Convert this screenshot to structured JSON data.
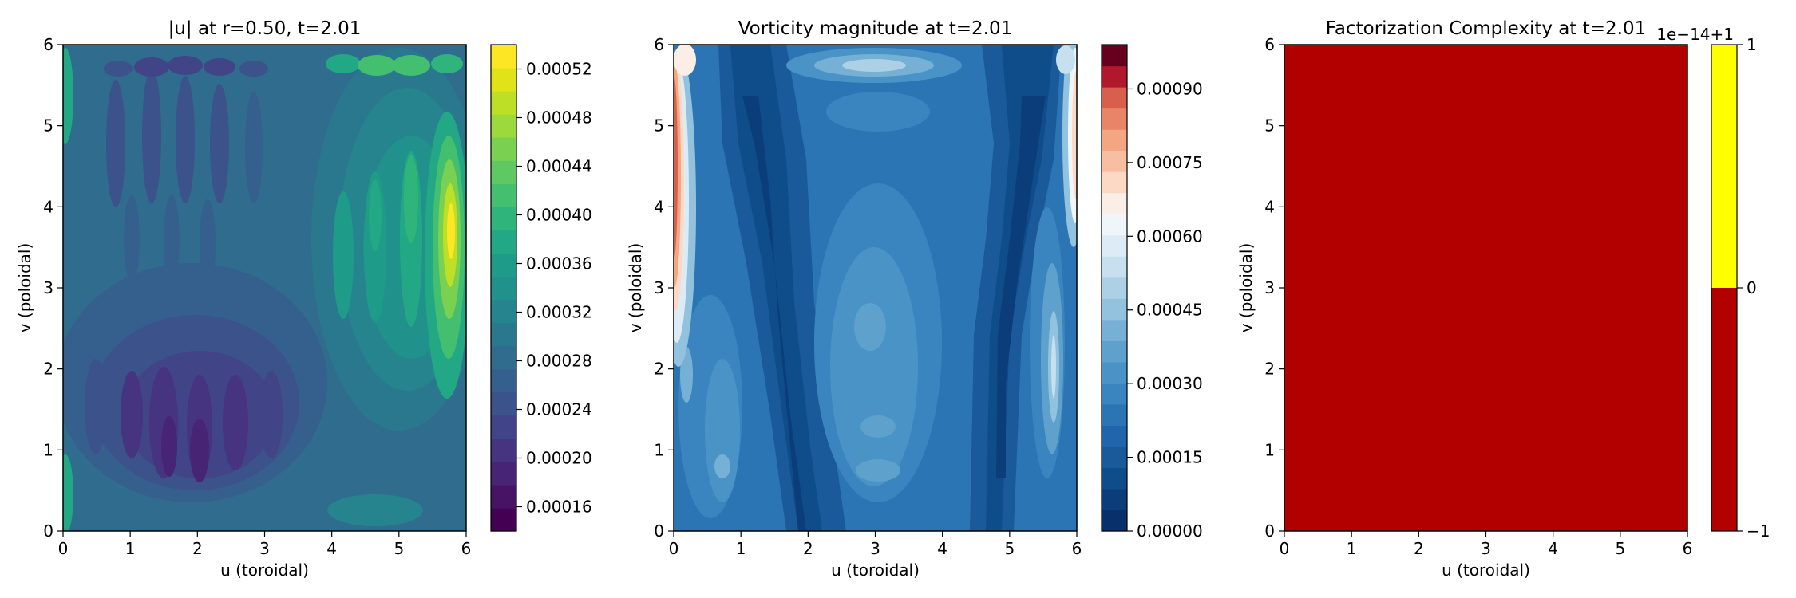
{
  "chart_data": [
    {
      "type": "heatmap",
      "title": "|u| at r=0.50, t=2.01",
      "xlabel": "u (toroidal)",
      "ylabel": "v (poloidal)",
      "xlim": [
        0,
        6
      ],
      "ylim": [
        0,
        6
      ],
      "x_ticks": [
        "0",
        "1",
        "2",
        "3",
        "4",
        "5",
        "6"
      ],
      "y_ticks": [
        "0",
        "1",
        "2",
        "3",
        "4",
        "5",
        "6"
      ],
      "colormap": "viridis",
      "colorbar_range": [
        0.00014,
        0.00054
      ],
      "colorbar_ticks": [
        "0.00016",
        "0.00020",
        "0.00024",
        "0.00028",
        "0.00032",
        "0.00036",
        "0.00040",
        "0.00044",
        "0.00048",
        "0.00052"
      ],
      "colorbar_tick_values": [
        0.00016,
        0.0002,
        0.00024,
        0.00028,
        0.00032,
        0.00036,
        0.0004,
        0.00044,
        0.00048,
        0.00052
      ],
      "levels": 20,
      "colors": [
        "#440154",
        "#471365",
        "#482475",
        "#463480",
        "#414487",
        "#3b528b",
        "#355f8d",
        "#2f6c8e",
        "#2a788e",
        "#25848e",
        "#21918c",
        "#1e9c89",
        "#22a884",
        "#2fb47c",
        "#44bf70",
        "#5ec962",
        "#7ad151",
        "#9bd93c",
        "#bddf26",
        "#dfe318",
        "#fde725"
      ]
    },
    {
      "type": "heatmap",
      "title": "Vorticity magnitude at t=2.01",
      "xlabel": "u (toroidal)",
      "ylabel": "v (poloidal)",
      "xlim": [
        0,
        6
      ],
      "ylim": [
        0,
        6
      ],
      "x_ticks": [
        "0",
        "1",
        "2",
        "3",
        "4",
        "5",
        "6"
      ],
      "y_ticks": [
        "0",
        "1",
        "2",
        "3",
        "4",
        "5",
        "6"
      ],
      "colormap": "RdBu_r",
      "colorbar_range": [
        0.0,
        0.00099
      ],
      "colorbar_ticks": [
        "0.00000",
        "0.00015",
        "0.00030",
        "0.00045",
        "0.00060",
        "0.00075",
        "0.00090"
      ],
      "colorbar_tick_values": [
        0.0,
        0.00015,
        0.0003,
        0.00045,
        0.0006,
        0.00075,
        0.0009
      ],
      "levels": 22,
      "colors": [
        "#08306b",
        "#0b3d7a",
        "#0f4c8a",
        "#1a5a9a",
        "#2166ac",
        "#2c75b5",
        "#3a85bf",
        "#4a93c6",
        "#5ea1cd",
        "#76b0d5",
        "#92c2de",
        "#acd1e6",
        "#c6e0ef",
        "#dcebf5",
        "#f0f5fa",
        "#fbeee6",
        "#fcd9c5",
        "#f8bea2",
        "#f4a582",
        "#e98466",
        "#d6604d",
        "#b2182b",
        "#67001f"
      ]
    },
    {
      "type": "heatmap",
      "title": "Factorization Complexity at t=2.01",
      "xlabel": "u (toroidal)",
      "ylabel": "v (poloidal)",
      "xlim": [
        0,
        6
      ],
      "ylim": [
        0,
        6
      ],
      "x_ticks": [
        "0",
        "1",
        "2",
        "3",
        "4",
        "5",
        "6"
      ],
      "y_ticks": [
        "0",
        "1",
        "2",
        "3",
        "4",
        "5",
        "6"
      ],
      "field_value": 1,
      "field_color": "#b20000",
      "colorbar_range": [
        -1,
        1
      ],
      "colorbar_ticks": [
        "−1",
        "0",
        "1"
      ],
      "colorbar_tick_values": [
        -1,
        0,
        1
      ],
      "colorbar_offset": "1e−14+1",
      "colorbar_bands": [
        {
          "from": -1,
          "to": 0,
          "color": "#b20000"
        },
        {
          "from": 0,
          "to": 1,
          "color": "#ffff00"
        }
      ]
    }
  ]
}
